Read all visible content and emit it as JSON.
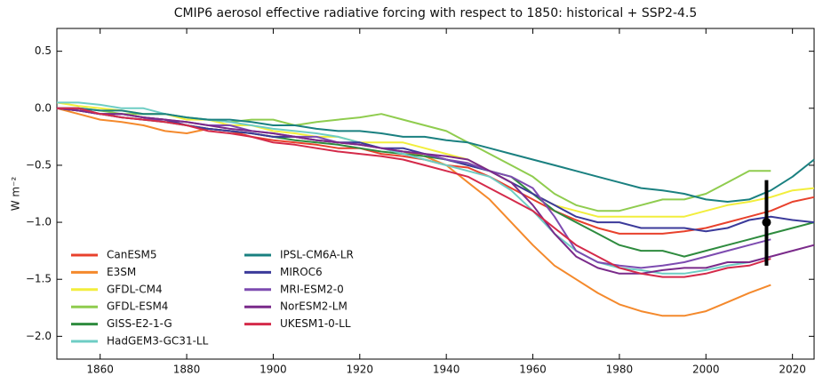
{
  "chart_data": {
    "type": "line",
    "title": "CMIP6 aerosol effective radiative forcing with respect to 1850: historical + SSP2-4.5",
    "y_label": "W m⁻²",
    "xlim": [
      1850,
      2025
    ],
    "xticks": [
      1860,
      1880,
      1900,
      1920,
      1940,
      1960,
      1980,
      2000,
      2020
    ],
    "ylim": [
      -2.2,
      0.7
    ],
    "yticks": [
      {
        "value": -2.0,
        "label": "−2.0"
      },
      {
        "value": -1.5,
        "label": "−1.5"
      },
      {
        "value": -1.0,
        "label": "−1.0"
      },
      {
        "value": -0.5,
        "label": "−0.5"
      },
      {
        "value": 0,
        "label": "0.0"
      },
      0.5
    ],
    "legend": "lower left",
    "x": [
      1850,
      1855,
      1860,
      1865,
      1870,
      1875,
      1880,
      1885,
      1890,
      1895,
      1900,
      1905,
      1910,
      1915,
      1920,
      1925,
      1930,
      1935,
      1940,
      1945,
      1950,
      1955,
      1960,
      1965,
      1970,
      1975,
      1980,
      1985,
      1990,
      1995,
      2000,
      2005,
      2010,
      2015,
      2020,
      2025
    ],
    "series": [
      {
        "name": "CanESM5",
        "color": "#e8412c",
        "values": [
          0,
          -0.02,
          -0.05,
          -0.05,
          -0.08,
          -0.1,
          -0.15,
          -0.18,
          -0.2,
          -0.25,
          -0.28,
          -0.3,
          -0.32,
          -0.35,
          -0.35,
          -0.4,
          -0.42,
          -0.45,
          -0.5,
          -0.52,
          -0.6,
          -0.7,
          -0.8,
          -0.9,
          -0.98,
          -1.05,
          -1.1,
          -1.1,
          -1.1,
          -1.08,
          -1.05,
          -1.0,
          -0.95,
          -0.9,
          -0.82,
          -0.78
        ]
      },
      {
        "name": "E3SM",
        "color": "#f4892c",
        "values": [
          0,
          -0.05,
          -0.1,
          -0.12,
          -0.15,
          -0.2,
          -0.22,
          -0.18,
          -0.2,
          -0.22,
          -0.25,
          -0.25,
          -0.28,
          -0.3,
          -0.32,
          -0.35,
          -0.38,
          -0.42,
          -0.5,
          -0.65,
          -0.8,
          -1.0,
          -1.2,
          -1.38,
          -1.5,
          -1.62,
          -1.72,
          -1.78,
          -1.82,
          -1.82,
          -1.78,
          -1.7,
          -1.62,
          -1.55,
          null,
          null
        ]
      },
      {
        "name": "GFDL-CM4",
        "color": "#f2ee3c",
        "values": [
          0.05,
          0.02,
          0,
          -0.02,
          -0.05,
          -0.05,
          -0.1,
          -0.1,
          -0.15,
          -0.15,
          -0.2,
          -0.22,
          -0.25,
          -0.25,
          -0.3,
          -0.3,
          -0.3,
          -0.35,
          -0.4,
          -0.45,
          -0.55,
          -0.65,
          -0.75,
          -0.85,
          -0.9,
          -0.95,
          -0.95,
          -0.95,
          -0.95,
          -0.95,
          -0.9,
          -0.85,
          -0.82,
          -0.78,
          -0.72,
          -0.7
        ]
      },
      {
        "name": "GFDL-ESM4",
        "color": "#8fcc4e",
        "values": [
          0,
          0,
          -0.02,
          -0.05,
          -0.05,
          -0.05,
          -0.08,
          -0.1,
          -0.12,
          -0.1,
          -0.1,
          -0.15,
          -0.12,
          -0.1,
          -0.08,
          -0.05,
          -0.1,
          -0.15,
          -0.2,
          -0.3,
          -0.4,
          -0.5,
          -0.6,
          -0.75,
          -0.85,
          -0.9,
          -0.9,
          -0.85,
          -0.8,
          -0.8,
          -0.75,
          -0.65,
          -0.55,
          -0.55,
          null,
          null
        ]
      },
      {
        "name": "GISS-E2-1-G",
        "color": "#2e8b3e",
        "values": [
          0,
          -0.02,
          -0.05,
          -0.08,
          -0.1,
          -0.12,
          -0.15,
          -0.18,
          -0.2,
          -0.22,
          -0.25,
          -0.28,
          -0.3,
          -0.32,
          -0.35,
          -0.38,
          -0.4,
          -0.42,
          -0.45,
          -0.5,
          -0.55,
          -0.6,
          -0.75,
          -0.9,
          -1.0,
          -1.1,
          -1.2,
          -1.25,
          -1.25,
          -1.3,
          -1.25,
          -1.2,
          -1.15,
          -1.1,
          -1.05,
          -1.0
        ]
      },
      {
        "name": "HadGEM3-GC31-LL",
        "color": "#6ecdc4",
        "values": [
          0.05,
          0.05,
          0.03,
          0,
          0,
          -0.05,
          -0.08,
          -0.1,
          -0.12,
          -0.15,
          -0.18,
          -0.2,
          -0.22,
          -0.25,
          -0.3,
          -0.35,
          -0.4,
          -0.45,
          -0.5,
          -0.55,
          -0.6,
          -0.72,
          -0.9,
          -1.1,
          -1.25,
          -1.35,
          -1.4,
          -1.42,
          -1.45,
          -1.45,
          -1.42,
          -1.38,
          -1.35,
          -1.3,
          null,
          null
        ]
      },
      {
        "name": "IPSL-CM6A-LR",
        "color": "#1a8080",
        "values": [
          0,
          0,
          -0.02,
          -0.02,
          -0.05,
          -0.05,
          -0.08,
          -0.1,
          -0.1,
          -0.12,
          -0.15,
          -0.15,
          -0.18,
          -0.2,
          -0.2,
          -0.22,
          -0.25,
          -0.25,
          -0.28,
          -0.3,
          -0.35,
          -0.4,
          -0.45,
          -0.5,
          -0.55,
          -0.6,
          -0.65,
          -0.7,
          -0.72,
          -0.75,
          -0.8,
          -0.82,
          -0.8,
          -0.72,
          -0.6,
          -0.45
        ]
      },
      {
        "name": "MIROC6",
        "color": "#3b3a9a",
        "values": [
          0,
          -0.02,
          -0.05,
          -0.05,
          -0.08,
          -0.1,
          -0.15,
          -0.18,
          -0.2,
          -0.22,
          -0.25,
          -0.25,
          -0.28,
          -0.3,
          -0.3,
          -0.35,
          -0.35,
          -0.4,
          -0.45,
          -0.5,
          -0.55,
          -0.65,
          -0.75,
          -0.85,
          -0.95,
          -1.0,
          -1.0,
          -1.05,
          -1.05,
          -1.05,
          -1.08,
          -1.05,
          -0.98,
          -0.95,
          -0.98,
          -1.0
        ]
      },
      {
        "name": "MRI-ESM2-0",
        "color": "#7d4bb0",
        "values": [
          0,
          0,
          -0.05,
          -0.08,
          -0.1,
          -0.1,
          -0.12,
          -0.15,
          -0.15,
          -0.2,
          -0.22,
          -0.25,
          -0.25,
          -0.3,
          -0.32,
          -0.35,
          -0.38,
          -0.4,
          -0.45,
          -0.48,
          -0.55,
          -0.6,
          -0.7,
          -0.95,
          -1.25,
          -1.35,
          -1.38,
          -1.4,
          -1.38,
          -1.35,
          -1.3,
          -1.25,
          -1.2,
          -1.15,
          null,
          null
        ]
      },
      {
        "name": "NorESM2-LM",
        "color": "#7a2a8a",
        "values": [
          0,
          -0.02,
          -0.05,
          -0.05,
          -0.08,
          -0.1,
          -0.12,
          -0.15,
          -0.18,
          -0.2,
          -0.22,
          -0.25,
          -0.28,
          -0.3,
          -0.32,
          -0.35,
          -0.38,
          -0.4,
          -0.42,
          -0.45,
          -0.55,
          -0.65,
          -0.85,
          -1.1,
          -1.3,
          -1.4,
          -1.45,
          -1.45,
          -1.42,
          -1.4,
          -1.4,
          -1.35,
          -1.35,
          -1.3,
          -1.25,
          -1.2
        ]
      },
      {
        "name": "UKESM1-0-LL",
        "color": "#d42a4a",
        "values": [
          0,
          0,
          -0.05,
          -0.08,
          -0.1,
          -0.12,
          -0.15,
          -0.2,
          -0.22,
          -0.25,
          -0.3,
          -0.32,
          -0.35,
          -0.38,
          -0.4,
          -0.42,
          -0.45,
          -0.5,
          -0.55,
          -0.6,
          -0.7,
          -0.8,
          -0.9,
          -1.05,
          -1.2,
          -1.3,
          -1.4,
          -1.45,
          -1.48,
          -1.48,
          -1.45,
          -1.4,
          -1.38,
          -1.32,
          null,
          null
        ]
      }
    ],
    "assessment": {
      "x": 2014,
      "value": -1.0,
      "low": -1.38,
      "high": -0.63,
      "color": "#000000"
    }
  }
}
